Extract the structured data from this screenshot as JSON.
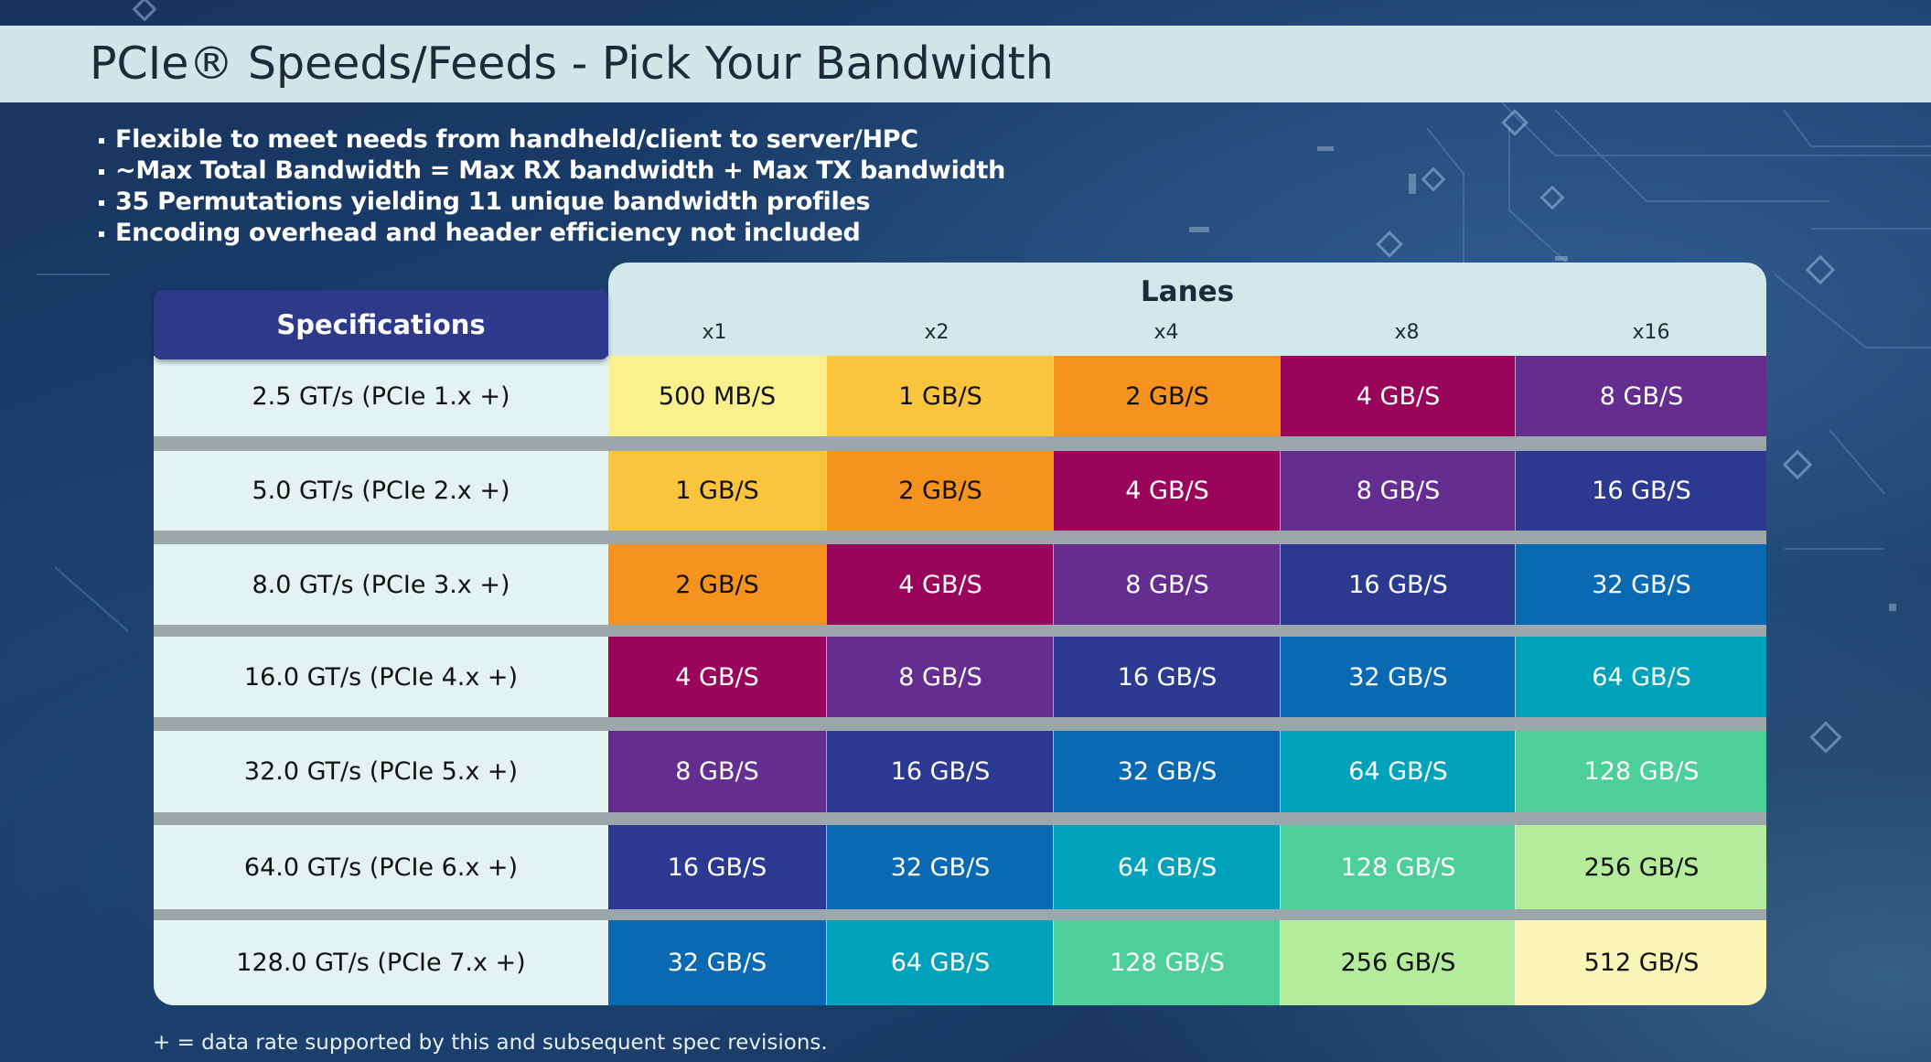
{
  "slide": {
    "title": "PCIe® Speeds/Feeds - Pick Your Bandwidth",
    "bullets": [
      "Flexible to meet needs from handheld/client to server/HPC",
      "~Max Total Bandwidth = Max RX bandwidth + Max TX bandwidth",
      "35 Permutations yielding 11 unique bandwidth profiles",
      "Encoding overhead and header efficiency not included"
    ],
    "footnote": "+ = data rate supported by this and subsequent spec revisions."
  },
  "table": {
    "spec_header": "Specifications",
    "lanes_title": "Lanes",
    "lanes": [
      "x1",
      "x2",
      "x4",
      "x8",
      "x16"
    ],
    "rows": [
      {
        "spec": "2.5 GT/s (PCIe 1.x +)",
        "values": [
          "500 MB/S",
          "1 GB/S",
          "2 GB/S",
          "4 GB/S",
          "8 GB/S"
        ]
      },
      {
        "spec": "5.0 GT/s (PCIe 2.x +)",
        "values": [
          "1 GB/S",
          "2 GB/S",
          "4 GB/S",
          "8 GB/S",
          "16 GB/S"
        ]
      },
      {
        "spec": "8.0 GT/s (PCIe 3.x +)",
        "values": [
          "2 GB/S",
          "4 GB/S",
          "8 GB/S",
          "16 GB/S",
          "32 GB/S"
        ]
      },
      {
        "spec": "16.0 GT/s (PCIe 4.x +)",
        "values": [
          "4 GB/S",
          "8 GB/S",
          "16 GB/S",
          "32 GB/S",
          "64 GB/S"
        ]
      },
      {
        "spec": "32.0 GT/s (PCIe 5.x +)",
        "values": [
          "8 GB/S",
          "16 GB/S",
          "32 GB/S",
          "64 GB/S",
          "128 GB/S"
        ]
      },
      {
        "spec": "64.0 GT/s (PCIe 6.x +)",
        "values": [
          "16 GB/S",
          "32 GB/S",
          "64 GB/S",
          "128 GB/S",
          "256 GB/S"
        ]
      },
      {
        "spec": "128.0 GT/s (PCIe 7.x +)",
        "values": [
          "32 GB/S",
          "64 GB/S",
          "128 GB/S",
          "256 GB/S",
          "512 GB/S"
        ]
      }
    ],
    "bandwidth_colors": {
      "500 MB/S": {
        "bg": "#fbf18c",
        "fg": "#111111"
      },
      "1 GB/S": {
        "bg": "#fbc43d",
        "fg": "#111111"
      },
      "2 GB/S": {
        "bg": "#f6921e",
        "fg": "#111111"
      },
      "4 GB/S": {
        "bg": "#99055a",
        "fg": "#ffffff"
      },
      "8 GB/S": {
        "bg": "#662d91",
        "fg": "#ffffff"
      },
      "16 GB/S": {
        "bg": "#2b3990",
        "fg": "#ffffff"
      },
      "32 GB/S": {
        "bg": "#0a69b3",
        "fg": "#ffffff"
      },
      "64 GB/S": {
        "bg": "#00a1ba",
        "fg": "#ffffff"
      },
      "128 GB/S": {
        "bg": "#4ccf98",
        "fg": "#ffffff"
      },
      "256 GB/S": {
        "bg": "#b3ec9a",
        "fg": "#111111"
      },
      "512 GB/S": {
        "bg": "#f8f5b6",
        "fg": "#111111"
      }
    }
  }
}
